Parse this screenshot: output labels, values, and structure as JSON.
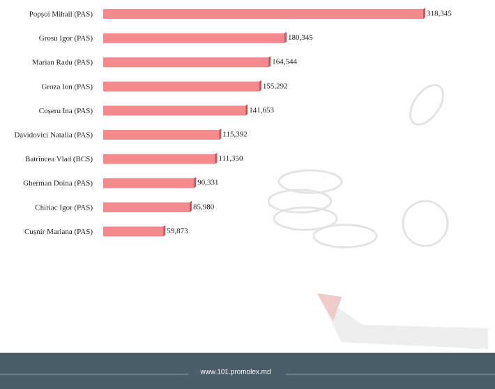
{
  "chart_data": {
    "type": "bar",
    "orientation": "horizontal",
    "categories": [
      "Popșoi Mihail (PAS)",
      "Grosu Igor (PAS)",
      "Marian Radu (PAS)",
      "Groza Ion (PAS)",
      "Coșeru Ina (PAS)",
      "Davidovici Natalia (PAS)",
      "Batrîncea Vlad (BCS)",
      "Gherman Doina (PAS)",
      "Chiriac Igor (PAS)",
      "Cușnir Mariana (PAS)"
    ],
    "values": [
      318345,
      180345,
      164544,
      155292,
      141653,
      115392,
      111350,
      90331,
      85980,
      59873
    ],
    "value_labels": [
      "318,345",
      "180,345",
      "164,544",
      "155,292",
      "141,653",
      "115,392",
      "111,350",
      "90,331",
      "85,980",
      "59,873"
    ],
    "color": "#f4898e"
  },
  "footer": {
    "text": "www.101.promolex.md"
  }
}
